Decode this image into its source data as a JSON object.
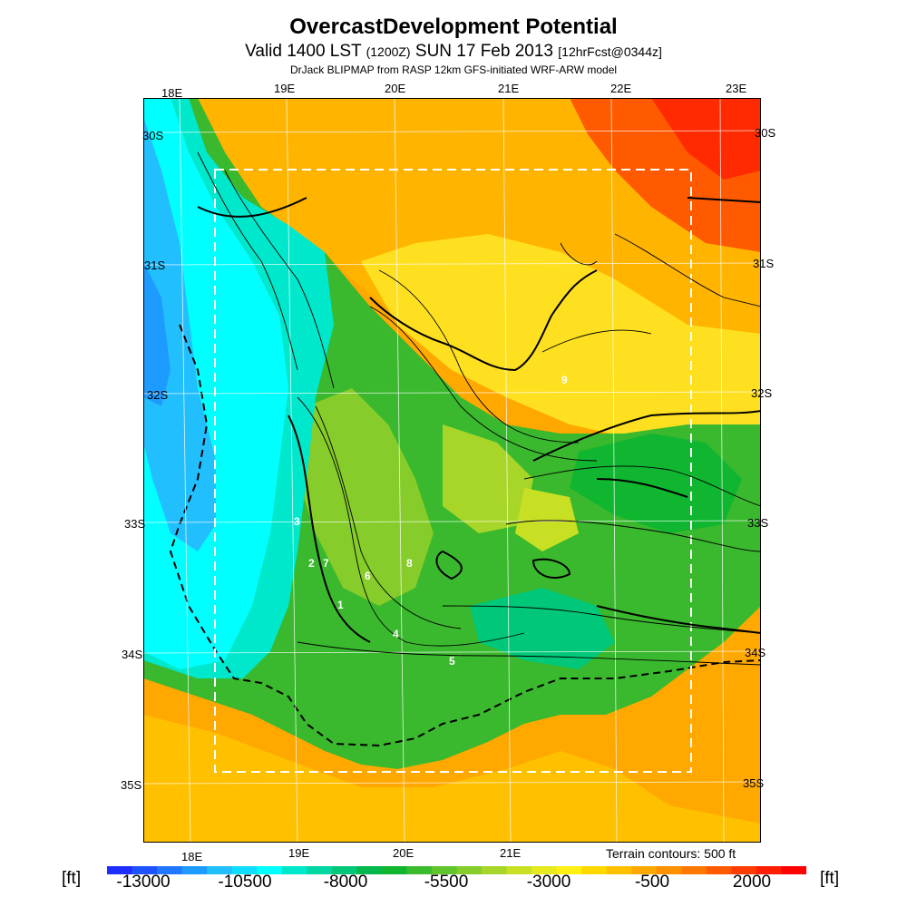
{
  "header": {
    "title": "OvercastDevelopment Potential",
    "valid_main": "Valid 1400 LST",
    "valid_utc": "(1200Z)",
    "valid_date": "SUN 17 Feb 2013",
    "forecast": "[12hrFcst@0344z]",
    "model_line": "DrJack BLIPMAP from RASP 12km GFS-initiated WRF-ARW model"
  },
  "map": {
    "lon_labels_top": [
      "18E",
      "19E",
      "20E",
      "21E",
      "22E",
      "23E"
    ],
    "lon_labels_bottom": [
      "18E",
      "19E",
      "20E",
      "21E"
    ],
    "lat_labels": [
      "30S",
      "31S",
      "32S",
      "33S",
      "34S",
      "35S"
    ],
    "contour_labels": [
      "1",
      "2",
      "3",
      "4",
      "5",
      "6",
      "7",
      "8",
      "9"
    ],
    "terrain_note": "Terrain contours: 500 ft"
  },
  "colorbar": {
    "unit_left": "[ft]",
    "unit_right": "[ft]",
    "tick_labels": [
      "-13000",
      "-10500",
      "-8000",
      "-5500",
      "-3000",
      "-500",
      "2000"
    ],
    "colors": [
      "#1e2dff",
      "#1f52ff",
      "#1f78ff",
      "#1e9bff",
      "#22bfff",
      "#11ddff",
      "#00ffff",
      "#00e8cc",
      "#00d7a2",
      "#00c878",
      "#00b84c",
      "#10b530",
      "#3abc2e",
      "#60c42c",
      "#86cc2a",
      "#a8d628",
      "#c8e024",
      "#e6ea1e",
      "#ffef12",
      "#ffd800",
      "#ffc000",
      "#ffa800",
      "#ff9000",
      "#ff7800",
      "#ff5a00",
      "#ff3c00",
      "#ff1e00",
      "#ff0000"
    ]
  },
  "colors": {
    "ocean_west": "#00f4ff",
    "ocean_south": "#ffa800",
    "land_high": "#ff9000",
    "land_low": "#10b530"
  }
}
